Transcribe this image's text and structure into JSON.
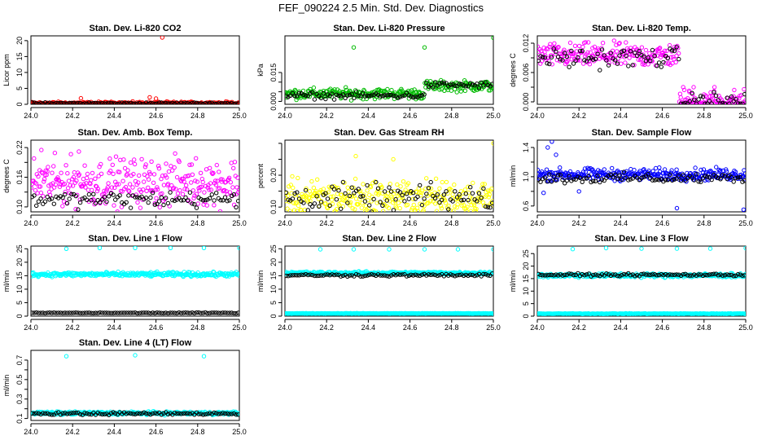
{
  "page": {
    "title": "FEF_090224  2.5 Min. Std. Dev. Diagnostics"
  },
  "chart_data": [
    {
      "type": "scatter",
      "key": "co2",
      "title": "Stan. Dev. Li-820 CO2",
      "xlabel": "",
      "ylabel": "Licor ppm",
      "xlim": [
        24.0,
        25.0
      ],
      "ylim": [
        0,
        21.5
      ],
      "xticks": [
        24.0,
        24.2,
        24.4,
        24.6,
        24.8,
        25.0
      ],
      "xtick_labels": [
        "24.0",
        "24.2",
        "24.4",
        "24.6",
        "24.8",
        "25.0"
      ],
      "yticks": [
        0,
        5,
        10,
        15,
        20
      ],
      "ytick_labels": [
        "0",
        "5",
        "10",
        "15",
        "20"
      ],
      "series": [
        {
          "name": "primary",
          "color": "#ff0000",
          "base": 0.3,
          "spread": 0.35,
          "outliers": [
            [
              24.63,
              21.0
            ],
            [
              24.24,
              1.9
            ],
            [
              24.57,
              2.2
            ],
            [
              24.6,
              1.8
            ]
          ]
        },
        {
          "name": "secondary",
          "color": "#000000",
          "base": 0.3,
          "spread": 0.2,
          "outliers": []
        }
      ]
    },
    {
      "type": "scatter",
      "key": "pressure",
      "title": "Stan. Dev. Li-820 Pressure",
      "xlabel": "",
      "ylabel": "kPa",
      "xlim": [
        24.0,
        25.0
      ],
      "ylim": [
        -0.0015,
        0.034
      ],
      "xticks": [
        24.0,
        24.2,
        24.4,
        24.6,
        24.8,
        25.0
      ],
      "xtick_labels": [
        "24.0",
        "24.2",
        "24.4",
        "24.6",
        "24.8",
        "25.0"
      ],
      "yticks": [
        0.0,
        0.005,
        0.01,
        0.015
      ],
      "ytick_labels": [
        "0.000",
        "",
        "",
        "0.015"
      ],
      "series": [
        {
          "name": "primary",
          "color": "#00bb00",
          "base_before": 0.004,
          "base_after": 0.008,
          "step_x": 24.67,
          "spread": 0.002,
          "outliers": [
            [
              24.33,
              0.028
            ],
            [
              24.67,
              0.028
            ],
            [
              25.0,
              0.033
            ]
          ]
        },
        {
          "name": "secondary",
          "color": "#000000",
          "base_before": 0.003,
          "base_after": 0.0085,
          "step_x": 24.67,
          "spread": 0.0012,
          "outliers": []
        }
      ]
    },
    {
      "type": "scatter",
      "key": "temp",
      "title": "Stan. Dev. Li-820 Temp.",
      "xlabel": "",
      "ylabel": "degrees C",
      "xlim": [
        24.0,
        25.0
      ],
      "ylim": [
        -0.0005,
        0.0135
      ],
      "xticks": [
        24.0,
        24.2,
        24.4,
        24.6,
        24.8,
        25.0
      ],
      "xtick_labels": [
        "24.0",
        "24.2",
        "24.4",
        "24.6",
        "24.8",
        "25.0"
      ],
      "yticks": [
        0.0,
        0.003,
        0.006,
        0.009,
        0.012
      ],
      "ytick_labels": [
        "0.000",
        "",
        "0.006",
        "",
        "0.012"
      ],
      "series": [
        {
          "name": "primary",
          "color": "#ff00ff",
          "base_before": 0.0095,
          "base_after": 0.0,
          "step_x": 24.68,
          "spread": 0.0018,
          "outliers": [
            [
              24.7,
              0.003
            ],
            [
              24.73,
              0.002
            ],
            [
              24.75,
              0.003
            ],
            [
              24.8,
              0.0015
            ],
            [
              24.85,
              0.003
            ]
          ]
        },
        {
          "name": "secondary",
          "color": "#000000",
          "base_before": 0.009,
          "base_after": 0.0,
          "step_x": 24.68,
          "spread": 0.0015,
          "outliers": []
        }
      ]
    },
    {
      "type": "scatter",
      "key": "ambbox",
      "title": "Stan. Dev. Amb. Box Temp.",
      "xlabel": "",
      "ylabel": "degrees C",
      "xlim": [
        24.0,
        25.0
      ],
      "ylim": [
        0.09,
        0.235
      ],
      "xticks": [
        24.0,
        24.2,
        24.4,
        24.6,
        24.8,
        25.0
      ],
      "xtick_labels": [
        "24.0",
        "24.2",
        "24.4",
        "24.6",
        "24.8",
        "25.0"
      ],
      "yticks": [
        0.1,
        0.13,
        0.16,
        0.19,
        0.22
      ],
      "ytick_labels": [
        "0.10",
        "",
        "0.16",
        "",
        "0.22"
      ],
      "series": [
        {
          "name": "primary",
          "color": "#ff00ff",
          "base": 0.15,
          "spread": 0.035,
          "outliers": [
            [
              24.05,
              0.215
            ],
            [
              24.23,
              0.212
            ]
          ]
        },
        {
          "name": "secondary",
          "color": "#000000",
          "base": 0.115,
          "spread": 0.012,
          "outliers": []
        }
      ]
    },
    {
      "type": "scatter",
      "key": "rh",
      "title": "Stan. Dev. Gas Stream RH",
      "xlabel": "",
      "ylabel": "percent",
      "xlim": [
        24.0,
        25.0
      ],
      "ylim": [
        0.085,
        0.31
      ],
      "xticks": [
        24.0,
        24.2,
        24.4,
        24.6,
        24.8,
        25.0
      ],
      "xtick_labels": [
        "24.0",
        "24.2",
        "24.4",
        "24.6",
        "24.8",
        "25.0"
      ],
      "yticks": [
        0.1,
        0.15,
        0.2,
        0.25,
        0.3
      ],
      "ytick_labels": [
        "0.10",
        "",
        "0.20",
        "",
        ""
      ],
      "series": [
        {
          "name": "primary",
          "color": "#ffff00",
          "base": 0.13,
          "spread": 0.04,
          "outliers": [
            [
              25.0,
              0.3
            ],
            [
              24.34,
              0.26
            ],
            [
              24.52,
              0.25
            ]
          ]
        },
        {
          "name": "secondary",
          "color": "#000000",
          "base": 0.13,
          "spread": 0.03,
          "outliers": []
        }
      ]
    },
    {
      "type": "scatter",
      "key": "sampleflow",
      "title": "Stan. Dev. Sample Flow",
      "xlabel": "",
      "ylabel": "ml/min",
      "xlim": [
        24.0,
        25.0
      ],
      "ylim": [
        0.52,
        1.5
      ],
      "xticks": [
        24.0,
        24.2,
        24.4,
        24.6,
        24.8,
        25.0
      ],
      "xtick_labels": [
        "24.0",
        "24.2",
        "24.4",
        "24.6",
        "24.8",
        "25.0"
      ],
      "yticks": [
        0.6,
        0.8,
        1.0,
        1.2,
        1.4
      ],
      "ytick_labels": [
        "0.6",
        "",
        "1.0",
        "",
        "1.4"
      ],
      "series": [
        {
          "name": "primary",
          "color": "#0000ff",
          "base": 1.03,
          "spread": 0.06,
          "outliers": [
            [
              24.07,
              1.48
            ],
            [
              24.05,
              1.4
            ],
            [
              24.09,
              1.3
            ],
            [
              24.03,
              0.78
            ],
            [
              24.67,
              0.57
            ],
            [
              24.99,
              0.55
            ],
            [
              24.2,
              0.8
            ]
          ]
        },
        {
          "name": "secondary",
          "color": "#000000",
          "base": 0.98,
          "spread": 0.05,
          "outliers": []
        }
      ]
    },
    {
      "type": "scatter",
      "key": "line1",
      "title": "Stan. Dev. Line 1 Flow",
      "xlabel": "",
      "ylabel": "ml/min",
      "xlim": [
        24.0,
        25.0
      ],
      "ylim": [
        0,
        26
      ],
      "xticks": [
        24.0,
        24.2,
        24.4,
        24.6,
        24.8,
        25.0
      ],
      "xtick_labels": [
        "24.0",
        "24.2",
        "24.4",
        "24.6",
        "24.8",
        "25.0"
      ],
      "yticks": [
        0,
        5,
        10,
        15,
        20,
        25
      ],
      "ytick_labels": [
        "0",
        "5",
        "10",
        "15",
        "20",
        "25"
      ],
      "series": [
        {
          "name": "primary",
          "color": "#00ffff",
          "base": 15.5,
          "spread": 0.6,
          "outliers": [
            [
              24.17,
              25.0
            ],
            [
              24.33,
              25.3
            ],
            [
              24.5,
              25.3
            ],
            [
              24.67,
              25.3
            ],
            [
              24.83,
              25.3
            ],
            [
              25.0,
              25.3
            ]
          ]
        },
        {
          "name": "secondary",
          "color": "#000000",
          "base": 1.2,
          "spread": 0.1,
          "outliers": []
        }
      ]
    },
    {
      "type": "scatter",
      "key": "line2",
      "title": "Stan. Dev. Line 2 Flow",
      "xlabel": "",
      "ylabel": "ml/min",
      "xlim": [
        24.0,
        25.0
      ],
      "ylim": [
        0,
        26
      ],
      "xticks": [
        24.0,
        24.2,
        24.4,
        24.6,
        24.8,
        25.0
      ],
      "xtick_labels": [
        "24.0",
        "24.2",
        "24.4",
        "24.6",
        "24.8",
        "25.0"
      ],
      "yticks": [
        0,
        5,
        10,
        15,
        20,
        25
      ],
      "ytick_labels": [
        "0",
        "5",
        "10",
        "15",
        "20",
        "25"
      ],
      "series": [
        {
          "name": "primary",
          "color": "#00ffff",
          "base": 1.0,
          "spread": 0.08,
          "outliers": [
            [
              24.17,
              24.8
            ],
            [
              24.33,
              24.8
            ],
            [
              24.5,
              24.8
            ],
            [
              24.67,
              24.8
            ],
            [
              24.83,
              24.8
            ],
            [
              25.0,
              24.8
            ]
          ]
        },
        {
          "name": "cyan-band",
          "color": "#00ffff",
          "base": 16.0,
          "spread": 0.4,
          "outliers": []
        },
        {
          "name": "secondary",
          "color": "#000000",
          "base": 15.2,
          "spread": 0.35,
          "outliers": []
        }
      ]
    },
    {
      "type": "scatter",
      "key": "line3",
      "title": "Stan. Dev. Line 3 Flow",
      "xlabel": "",
      "ylabel": "ml/min",
      "xlim": [
        24.0,
        25.0
      ],
      "ylim": [
        0,
        28
      ],
      "xticks": [
        24.0,
        24.2,
        24.4,
        24.6,
        24.8,
        25.0
      ],
      "xtick_labels": [
        "24.0",
        "24.2",
        "24.4",
        "24.6",
        "24.8",
        "25.0"
      ],
      "yticks": [
        0,
        5,
        10,
        15,
        20,
        25
      ],
      "ytick_labels": [
        "0",
        "5",
        "10",
        "15",
        "20",
        "25"
      ],
      "series": [
        {
          "name": "primary",
          "color": "#00ffff",
          "base": 1.0,
          "spread": 0.08,
          "outliers": [
            [
              24.17,
              26.8
            ],
            [
              24.33,
              27.2
            ],
            [
              24.5,
              27.0
            ],
            [
              24.67,
              27.0
            ],
            [
              24.83,
              27.0
            ],
            [
              25.0,
              27.2
            ]
          ]
        },
        {
          "name": "cyan-band",
          "color": "#00ffff",
          "base": 16.3,
          "spread": 0.6,
          "outliers": []
        },
        {
          "name": "secondary",
          "color": "#000000",
          "base": 16.5,
          "spread": 0.35,
          "outliers": []
        }
      ]
    },
    {
      "type": "scatter",
      "key": "line4",
      "title": "Stan. Dev. Line 4 (LT) Flow",
      "xlabel": "",
      "ylabel": "ml/min",
      "xlim": [
        24.0,
        25.0
      ],
      "ylim": [
        0.08,
        0.8
      ],
      "xticks": [
        24.0,
        24.2,
        24.4,
        24.6,
        24.8,
        25.0
      ],
      "xtick_labels": [
        "24.0",
        "24.2",
        "24.4",
        "24.6",
        "24.8",
        "25.0"
      ],
      "yticks": [
        0.1,
        0.2,
        0.3,
        0.4,
        0.5,
        0.6,
        0.7
      ],
      "ytick_labels": [
        "0.1",
        "",
        "0.3",
        "",
        "0.5",
        "",
        "0.7"
      ],
      "series": [
        {
          "name": "primary",
          "color": "#00ffff",
          "base": 0.155,
          "spread": 0.012,
          "outliers": [
            [
              24.17,
              0.74
            ],
            [
              24.5,
              0.75
            ],
            [
              24.83,
              0.74
            ]
          ]
        },
        {
          "name": "secondary",
          "color": "#000000",
          "base": 0.15,
          "spread": 0.01,
          "outliers": []
        }
      ]
    }
  ]
}
